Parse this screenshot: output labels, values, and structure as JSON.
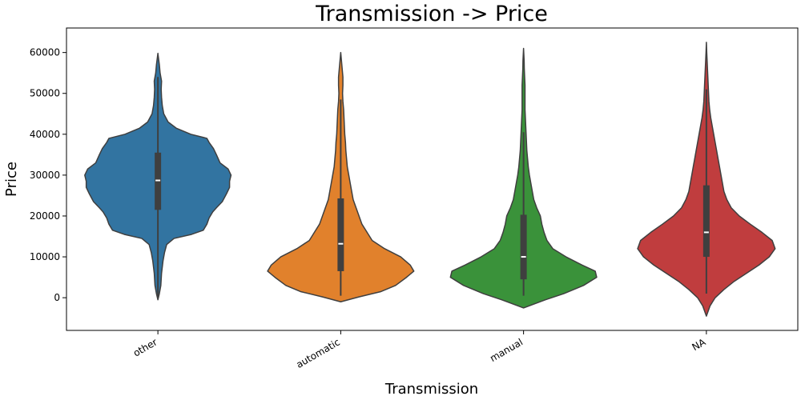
{
  "chart_data": {
    "type": "violin",
    "title": "Transmission -> Price",
    "xlabel": "Transmission",
    "ylabel": "Price",
    "ylim": [
      -8000,
      66000
    ],
    "yticks": [
      0,
      10000,
      20000,
      30000,
      40000,
      50000,
      60000
    ],
    "grid": false,
    "categories": [
      "other",
      "automatic",
      "manual",
      "NA"
    ],
    "colors": [
      "#3274a1",
      "#e1812c",
      "#3a923a",
      "#c03d3e"
    ],
    "series": [
      {
        "category": "other",
        "min": -500,
        "max": 59800,
        "q1": 21500,
        "median": 28700,
        "q3": 35500,
        "whisker_low": 0,
        "whisker_high": 54000,
        "density": [
          [
            -500,
            0
          ],
          [
            1000,
            0.02
          ],
          [
            3000,
            0.04
          ],
          [
            6000,
            0.05
          ],
          [
            9000,
            0.07
          ],
          [
            11000,
            0.09
          ],
          [
            13000,
            0.12
          ],
          [
            14500,
            0.22
          ],
          [
            15500,
            0.46
          ],
          [
            16500,
            0.62
          ],
          [
            18000,
            0.67
          ],
          [
            19500,
            0.7
          ],
          [
            21000,
            0.75
          ],
          [
            22000,
            0.8
          ],
          [
            23500,
            0.88
          ],
          [
            25500,
            0.94
          ],
          [
            27000,
            0.98
          ],
          [
            28500,
            0.98
          ],
          [
            30000,
            1.0
          ],
          [
            31500,
            0.96
          ],
          [
            33000,
            0.85
          ],
          [
            35000,
            0.8
          ],
          [
            36500,
            0.76
          ],
          [
            38000,
            0.7
          ],
          [
            39000,
            0.67
          ],
          [
            40000,
            0.45
          ],
          [
            41500,
            0.25
          ],
          [
            43000,
            0.14
          ],
          [
            45000,
            0.08
          ],
          [
            47000,
            0.06
          ],
          [
            49000,
            0.05
          ],
          [
            51000,
            0.045
          ],
          [
            53000,
            0.05
          ],
          [
            55000,
            0.03
          ],
          [
            57000,
            0.02
          ],
          [
            59800,
            0
          ]
        ]
      },
      {
        "category": "automatic",
        "min": -1000,
        "max": 60000,
        "q1": 6500,
        "median": 13200,
        "q3": 24300,
        "whisker_low": 500,
        "whisker_high": 48500,
        "density": [
          [
            -1000,
            0
          ],
          [
            200,
            0.25
          ],
          [
            1500,
            0.55
          ],
          [
            3000,
            0.75
          ],
          [
            5000,
            0.9
          ],
          [
            6500,
            1.0
          ],
          [
            8000,
            0.95
          ],
          [
            10000,
            0.82
          ],
          [
            12000,
            0.6
          ],
          [
            14000,
            0.43
          ],
          [
            16000,
            0.36
          ],
          [
            18000,
            0.29
          ],
          [
            20000,
            0.25
          ],
          [
            22000,
            0.21
          ],
          [
            24000,
            0.17
          ],
          [
            26000,
            0.15
          ],
          [
            28000,
            0.13
          ],
          [
            30000,
            0.11
          ],
          [
            32000,
            0.09
          ],
          [
            34000,
            0.08
          ],
          [
            36000,
            0.07
          ],
          [
            38000,
            0.065
          ],
          [
            40000,
            0.055
          ],
          [
            42000,
            0.05
          ],
          [
            44000,
            0.045
          ],
          [
            46000,
            0.04
          ],
          [
            48000,
            0.03
          ],
          [
            50000,
            0.025
          ],
          [
            52000,
            0.03
          ],
          [
            54000,
            0.03
          ],
          [
            56000,
            0.02
          ],
          [
            58000,
            0.01
          ],
          [
            60000,
            0
          ]
        ]
      },
      {
        "category": "manual",
        "min": -2500,
        "max": 61000,
        "q1": 4500,
        "median": 10000,
        "q3": 20300,
        "whisker_low": 500,
        "whisker_high": 40500,
        "density": [
          [
            -2500,
            0
          ],
          [
            -500,
            0.3
          ],
          [
            1000,
            0.55
          ],
          [
            3000,
            0.82
          ],
          [
            5000,
            1.0
          ],
          [
            6500,
            0.98
          ],
          [
            8000,
            0.8
          ],
          [
            10000,
            0.58
          ],
          [
            12000,
            0.4
          ],
          [
            14000,
            0.32
          ],
          [
            16000,
            0.28
          ],
          [
            18000,
            0.25
          ],
          [
            20000,
            0.23
          ],
          [
            22000,
            0.18
          ],
          [
            24000,
            0.14
          ],
          [
            26000,
            0.12
          ],
          [
            28000,
            0.1
          ],
          [
            30000,
            0.08
          ],
          [
            32000,
            0.065
          ],
          [
            34000,
            0.055
          ],
          [
            36000,
            0.045
          ],
          [
            38000,
            0.04
          ],
          [
            40000,
            0.035
          ],
          [
            42000,
            0.03
          ],
          [
            44000,
            0.025
          ],
          [
            46000,
            0.02
          ],
          [
            48000,
            0.02
          ],
          [
            50000,
            0.02
          ],
          [
            52000,
            0.02
          ],
          [
            54000,
            0.015
          ],
          [
            56000,
            0.01
          ],
          [
            58000,
            0.008
          ],
          [
            61000,
            0
          ]
        ]
      },
      {
        "category": "NA",
        "min": -4500,
        "max": 62500,
        "q1": 10000,
        "median": 16000,
        "q3": 27500,
        "whisker_low": 1000,
        "whisker_high": 51000,
        "density": [
          [
            -4500,
            0
          ],
          [
            -2000,
            0.05
          ],
          [
            0,
            0.12
          ],
          [
            2000,
            0.24
          ],
          [
            4000,
            0.38
          ],
          [
            6000,
            0.55
          ],
          [
            8000,
            0.72
          ],
          [
            10000,
            0.86
          ],
          [
            12000,
            0.94
          ],
          [
            14000,
            0.9
          ],
          [
            16000,
            0.76
          ],
          [
            18000,
            0.6
          ],
          [
            20000,
            0.45
          ],
          [
            22000,
            0.34
          ],
          [
            24000,
            0.28
          ],
          [
            26000,
            0.24
          ],
          [
            28000,
            0.22
          ],
          [
            30000,
            0.2
          ],
          [
            32000,
            0.18
          ],
          [
            34000,
            0.16
          ],
          [
            36000,
            0.14
          ],
          [
            38000,
            0.12
          ],
          [
            40000,
            0.1
          ],
          [
            42000,
            0.08
          ],
          [
            44000,
            0.06
          ],
          [
            46000,
            0.045
          ],
          [
            48000,
            0.035
          ],
          [
            50000,
            0.03
          ],
          [
            52000,
            0.025
          ],
          [
            54000,
            0.02
          ],
          [
            56000,
            0.015
          ],
          [
            58000,
            0.01
          ],
          [
            60000,
            0.005
          ],
          [
            62500,
            0
          ]
        ]
      }
    ]
  }
}
